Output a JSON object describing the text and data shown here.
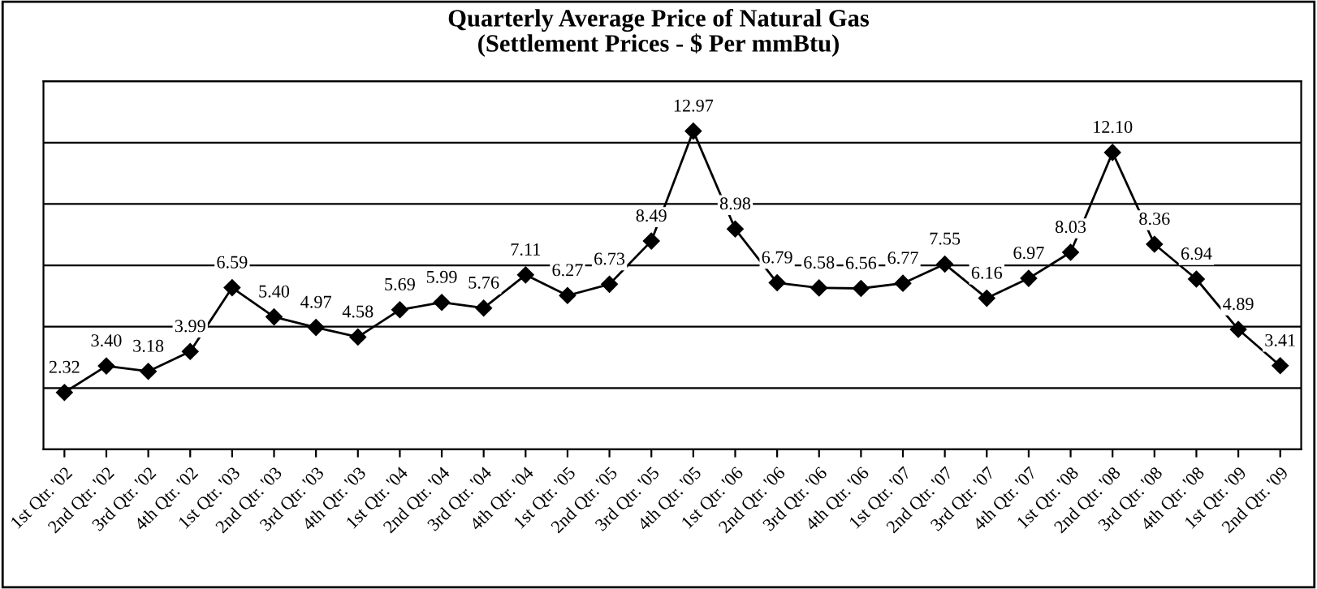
{
  "chart_data": {
    "type": "line",
    "title": "Quarterly Average Price of Natural Gas\n(Settlement Prices - $ Per mmBtu)",
    "categories": [
      "1st Qtr. '02",
      "2nd Qtr. '02",
      "3rd Qtr. '02",
      "4th Qtr. '02",
      "1st Qtr. '03",
      "2nd Qtr. '03",
      "3rd Qtr. '03",
      "4th Qtr. '03",
      "1st Qtr. '04",
      "2nd Qtr. '04",
      "3rd Qtr. '04",
      "4th Qtr. '04",
      "1st Qtr. '05",
      "2nd Qtr. '05",
      "3rd Qtr. '05",
      "4th Qtr. '05",
      "1st Qtr. '06",
      "2nd Qtr. '06",
      "3rd Qtr. '06",
      "4th Qtr. '06",
      "1st Qtr. '07",
      "2nd Qtr. '07",
      "3rd Qtr. '07",
      "4th Qtr. '07",
      "1st Qtr. '08",
      "2nd Qtr. '08",
      "3rd Qtr. '08",
      "4th Qtr. '08",
      "1st Qtr. '09",
      "2nd Qtr. '09"
    ],
    "values": [
      2.32,
      3.4,
      3.18,
      3.99,
      6.59,
      5.4,
      4.97,
      4.58,
      5.69,
      5.99,
      5.76,
      7.11,
      6.27,
      6.73,
      8.49,
      12.97,
      8.98,
      6.79,
      6.58,
      6.56,
      6.77,
      7.55,
      6.16,
      6.97,
      8.03,
      12.1,
      8.36,
      6.94,
      4.89,
      3.41
    ],
    "value_labels": [
      "2.32",
      "3.40",
      "3.18",
      "3.99",
      "6.59",
      "5.40",
      "4.97",
      "4.58",
      "5.69",
      "5.99",
      "5.76",
      "7.11",
      "6.27",
      "6.73",
      "8.49",
      "12.97",
      "8.98",
      "6.79",
      "6.58",
      "6.56",
      "6.77",
      "7.55",
      "6.16",
      "6.97",
      "8.03",
      "12.10",
      "8.36",
      "6.94",
      "4.89",
      "3.41"
    ],
    "color": "#000000",
    "marker": "diamond",
    "line_style": "solid",
    "ylim": [
      0,
      15
    ],
    "yticks": [
      {
        "value": 0,
        "label": null
      },
      {
        "value": 2.5,
        "label": null
      },
      {
        "value": 5,
        "label": null
      },
      {
        "value": 7.5,
        "label": null
      },
      {
        "value": 10,
        "label": null
      },
      {
        "value": 12.5,
        "label": null
      },
      {
        "value": 15,
        "label": null
      }
    ],
    "tick_labels": "x",
    "grid": "y",
    "legend": false
  }
}
